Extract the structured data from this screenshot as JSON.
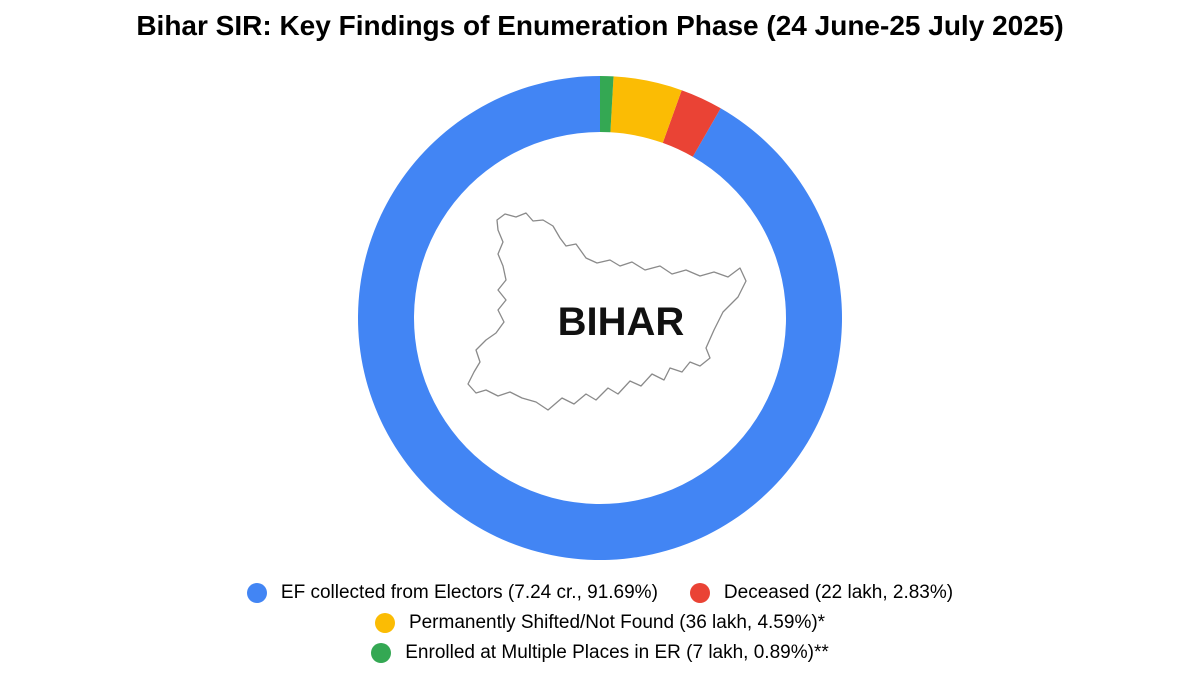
{
  "chart_data": {
    "type": "pie",
    "title": "Bihar SIR: Key Findings of Enumeration Phase (24 June-25 July 2025)",
    "center_label": "BIHAR",
    "legend_position": "bottom",
    "slices": [
      {
        "label": "EF collected from Electors (7.24 cr., 91.69%)",
        "value": 91.69,
        "color": "#4285f4"
      },
      {
        "label": "Deceased (22 lakh, 2.83%)",
        "value": 2.83,
        "color": "#ea4335"
      },
      {
        "label": "Permanently Shifted/Not Found (36 lakh, 4.59%)*",
        "value": 4.59,
        "color": "#fbbc04"
      },
      {
        "label": "Enrolled at Multiple Places in ER (7 lakh, 0.89%)**",
        "value": 0.89,
        "color": "#34a853"
      }
    ]
  }
}
